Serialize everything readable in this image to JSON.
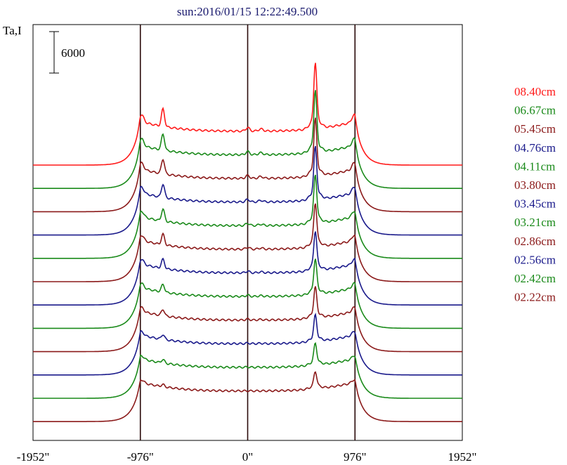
{
  "title": "sun:2016/01/15 12:22:49.500",
  "y_axis_label": "Ta,I",
  "scale_bar_label": "6000",
  "chart_data": {
    "type": "line",
    "title": "sun:2016/01/15 12:22:49.500",
    "ylabel": "Ta,I",
    "xlim": [
      -2000,
      2000
    ],
    "x_ticks": [
      -1952,
      -976,
      0,
      976,
      1952
    ],
    "x_tick_labels": [
      "-1952\"",
      "-976\"",
      "0\"",
      "976\"",
      "1952\""
    ],
    "vertical_lines_at": [
      -976,
      0,
      976
    ],
    "scale_bar": 6000,
    "series": [
      {
        "name": "08.40cm",
        "color": "#ff1a1a"
      },
      {
        "name": "06.67cm",
        "color": "#1a8a1a"
      },
      {
        "name": "05.45cm",
        "color": "#8b1a1a"
      },
      {
        "name": "04.76cm",
        "color": "#1a1a8b"
      },
      {
        "name": "04.11cm",
        "color": "#1a8a1a"
      },
      {
        "name": "03.80cm",
        "color": "#8b1a1a"
      },
      {
        "name": "03.45cm",
        "color": "#1a1a8b"
      },
      {
        "name": "03.21cm",
        "color": "#1a8a1a"
      },
      {
        "name": "02.86cm",
        "color": "#8b1a1a"
      },
      {
        "name": "02.56cm",
        "color": "#1a1a8b"
      },
      {
        "name": "02.42cm",
        "color": "#1a8a1a"
      },
      {
        "name": "02.22cm",
        "color": "#8b1a1a"
      }
    ],
    "grid": false,
    "legend_position": "right"
  }
}
